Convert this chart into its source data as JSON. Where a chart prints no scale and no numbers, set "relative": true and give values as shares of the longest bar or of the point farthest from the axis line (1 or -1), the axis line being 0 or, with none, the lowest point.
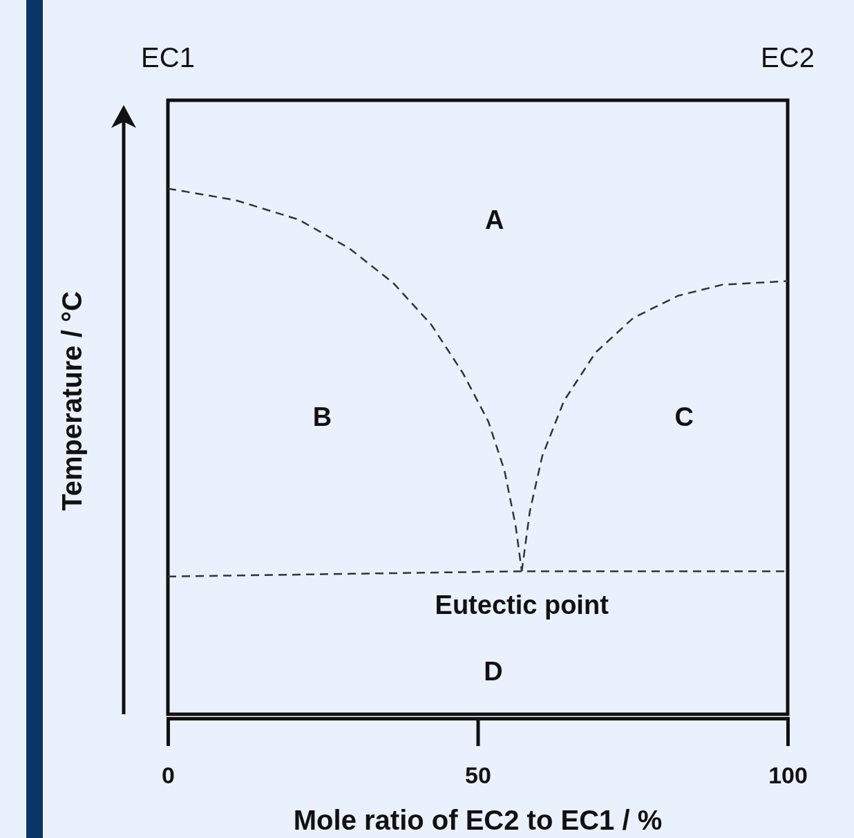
{
  "chart_data": {
    "type": "line",
    "relative": true,
    "xlabel": "Mole ratio of EC2 to EC1 / %",
    "ylabel": "Temperature / °C",
    "xlim": [
      0,
      100
    ],
    "xticks": [
      0,
      50,
      100
    ],
    "line_style": "dashed",
    "marker": "none",
    "grid": false,
    "series": [
      {
        "color": "#333333",
        "x": [
          0,
          10.9,
          21.1,
          29.3,
          36.4,
          42.5,
          47.6,
          51.7,
          54.3,
          56.1,
          57.1
        ],
        "values": [
          1.0,
          0.978,
          0.941,
          0.886,
          0.82,
          0.741,
          0.649,
          0.557,
          0.464,
          0.359,
          0.272
        ]
      },
      {
        "color": "#333333",
        "x": [
          57.1,
          58.4,
          60.4,
          63.9,
          69.0,
          75.1,
          82.3,
          89.4,
          100
        ],
        "values": [
          0.272,
          0.386,
          0.491,
          0.596,
          0.688,
          0.754,
          0.796,
          0.817,
          0.824
        ]
      },
      {
        "color": "#333333",
        "x": [
          0,
          57.1,
          100
        ],
        "values": [
          0.262,
          0.272,
          0.272
        ]
      }
    ],
    "annotations": [
      "EC1",
      "EC2",
      "A",
      "B",
      "C",
      {
        "text": "Eutectic point",
        "x": 57.1,
        "y": 0.272
      },
      "D"
    ]
  }
}
